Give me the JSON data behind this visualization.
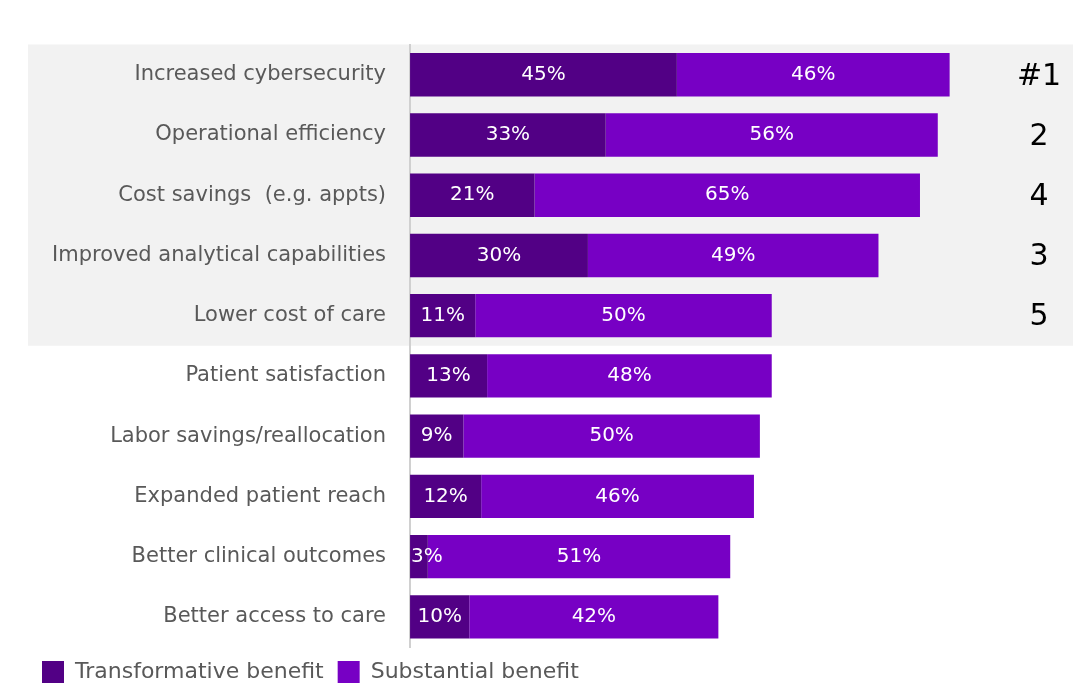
{
  "chart_data": {
    "type": "bar",
    "orientation": "horizontal",
    "stacked": true,
    "categories": [
      "Increased cybersecurity",
      "Operational efficiency",
      "Cost savings  (e.g. appts)",
      "Improved analytical capabilities",
      "Lower cost of care",
      "Patient satisfaction",
      "Labor savings/reallocation",
      "Expanded patient reach",
      "Better clinical outcomes",
      "Better access to care"
    ],
    "series": [
      {
        "name": "Transformative benefit",
        "color": "#520085",
        "values": [
          45,
          33,
          21,
          30,
          11,
          13,
          9,
          12,
          3,
          10
        ],
        "value_labels": [
          "45%",
          "33%",
          "21%",
          "30%",
          "11%",
          "13%",
          "9%",
          "12%",
          "3%",
          "10%"
        ]
      },
      {
        "name": "Substantial benefit",
        "color": "#7700c4",
        "values": [
          46,
          56,
          65,
          49,
          50,
          48,
          50,
          46,
          51,
          42
        ],
        "value_labels": [
          "46%",
          "56%",
          "65%",
          "49%",
          "50%",
          "48%",
          "50%",
          "46%",
          "51%",
          "42%"
        ]
      }
    ],
    "annotations": [
      "#1",
      "2",
      "4",
      "3",
      "5"
    ],
    "bands": [
      {
        "axis": "y",
        "from": "Increased cybersecurity",
        "to": "Lower cost of care",
        "color": "#f2f2f2"
      }
    ],
    "grid": false,
    "legend": "bottom left"
  }
}
